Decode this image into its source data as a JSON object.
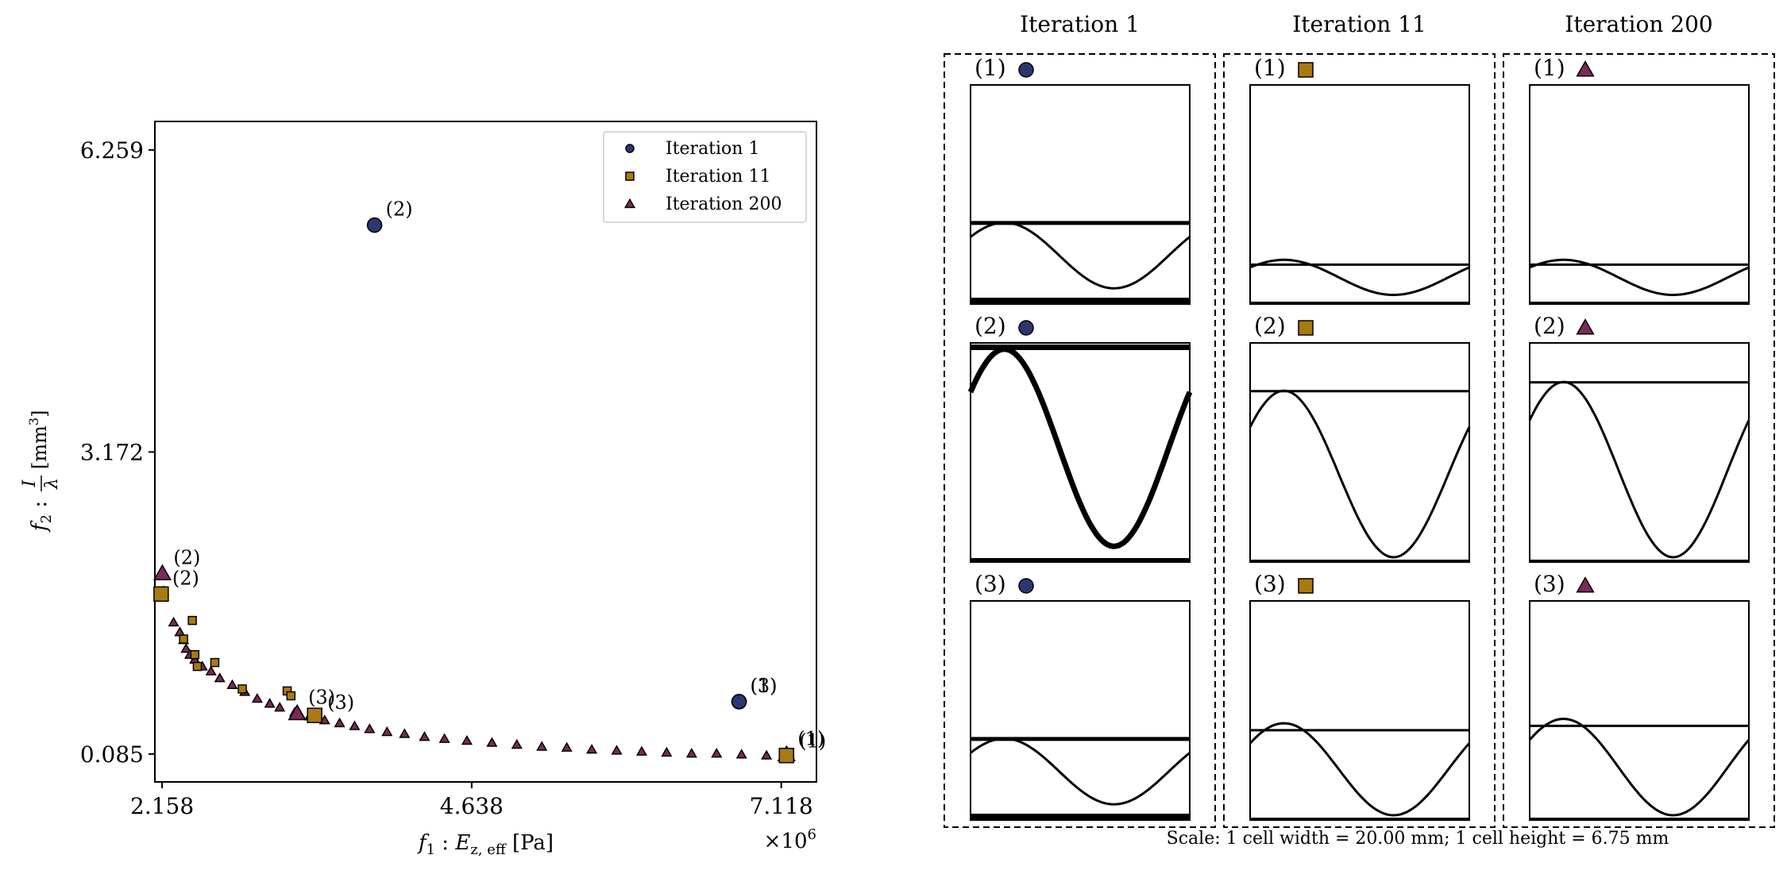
{
  "chart_data": [
    {
      "type": "scatter",
      "xlabel_var": "f",
      "xlabel_sub": "1",
      "xlabel_text": "E",
      "xlabel_text_sub": "z, eff",
      "xlabel_unit": "[Pa]",
      "ylabel_var": "f",
      "ylabel_sub": "2",
      "ylabel_num": "I",
      "ylabel_den": "λ",
      "ylabel_unit": "[mm",
      "ylabel_unit_sup": "3",
      "ylabel_unit_end": "]",
      "x_ticks": [
        2.158,
        4.638,
        7.118
      ],
      "x_tick_labels": [
        "2.158",
        "4.638",
        "7.118"
      ],
      "y_ticks": [
        0.085,
        3.172,
        6.259
      ],
      "y_tick_labels": [
        "0.085",
        "3.172",
        "6.259"
      ],
      "x_multiplier_base": "×10",
      "x_multiplier_exp": "6",
      "xlim": [
        2.1,
        7.4
      ],
      "ylim": [
        -0.2,
        6.55
      ],
      "legend_position": "top-right",
      "series": [
        {
          "name": "Iteration 1",
          "marker": "circle",
          "color": "#2a3770",
          "points": [
            [
              3.86,
              5.49
            ],
            [
              6.78,
              0.62
            ]
          ],
          "labeled": [
            {
              "x": 3.86,
              "y": 5.49,
              "label": "(2)"
            },
            {
              "x": 6.78,
              "y": 0.62,
              "label": "(1)"
            },
            {
              "x": 6.78,
              "y": 0.62,
              "label": "(3)"
            }
          ]
        },
        {
          "name": "Iteration 11",
          "marker": "square",
          "color": "#a87a10",
          "points": [
            [
              2.4,
              1.45
            ],
            [
              2.33,
              1.26
            ],
            [
              2.42,
              1.1
            ],
            [
              2.58,
              1.02
            ],
            [
              2.44,
              0.98
            ],
            [
              2.8,
              0.75
            ],
            [
              3.16,
              0.73
            ],
            [
              3.19,
              0.68
            ],
            [
              3.38,
              0.48
            ],
            [
              7.16,
              0.07
            ],
            [
              2.15,
              1.72
            ]
          ],
          "labeled": [
            {
              "x": 2.15,
              "y": 1.72,
              "label": "(2)"
            },
            {
              "x": 3.38,
              "y": 0.48,
              "label": "(3)"
            },
            {
              "x": 7.16,
              "y": 0.07,
              "label": "(1)"
            }
          ]
        },
        {
          "name": "Iteration 200",
          "marker": "triangle",
          "color": "#7a2a5a",
          "points": [
            [
              2.16,
              1.93
            ],
            [
              2.17,
              1.75
            ],
            [
              2.25,
              1.43
            ],
            [
              2.3,
              1.33
            ],
            [
              2.33,
              1.25
            ],
            [
              2.35,
              1.16
            ],
            [
              2.38,
              1.1
            ],
            [
              2.42,
              1.05
            ],
            [
              2.48,
              0.98
            ],
            [
              2.55,
              0.93
            ],
            [
              2.62,
              0.86
            ],
            [
              2.72,
              0.79
            ],
            [
              2.82,
              0.72
            ],
            [
              2.92,
              0.65
            ],
            [
              3.02,
              0.6
            ],
            [
              3.1,
              0.56
            ],
            [
              3.22,
              0.51
            ],
            [
              3.34,
              0.47
            ],
            [
              3.46,
              0.43
            ],
            [
              3.58,
              0.4
            ],
            [
              3.7,
              0.37
            ],
            [
              3.82,
              0.34
            ],
            [
              3.96,
              0.31
            ],
            [
              4.1,
              0.29
            ],
            [
              4.26,
              0.26
            ],
            [
              4.42,
              0.24
            ],
            [
              4.6,
              0.22
            ],
            [
              4.8,
              0.2
            ],
            [
              5.0,
              0.18
            ],
            [
              5.2,
              0.16
            ],
            [
              5.4,
              0.15
            ],
            [
              5.6,
              0.13
            ],
            [
              5.8,
              0.12
            ],
            [
              6.0,
              0.11
            ],
            [
              6.2,
              0.1
            ],
            [
              6.4,
              0.09
            ],
            [
              6.6,
              0.09
            ],
            [
              6.8,
              0.08
            ],
            [
              7.0,
              0.07
            ],
            [
              3.24,
              0.5
            ],
            [
              7.16,
              0.08
            ]
          ],
          "labeled": [
            {
              "x": 2.16,
              "y": 1.93,
              "label": "(2)"
            },
            {
              "x": 3.24,
              "y": 0.5,
              "label": "(3)"
            },
            {
              "x": 7.16,
              "y": 0.08,
              "label": "(1)"
            }
          ]
        }
      ]
    },
    {
      "type": "other",
      "columns": [
        {
          "title": "Iteration 1",
          "marker": "circle",
          "color": "#2a3770"
        },
        {
          "title": "Iteration 11",
          "marker": "square",
          "color": "#a87a10"
        },
        {
          "title": "Iteration 200",
          "marker": "triangle",
          "color": "#7a2a5a"
        }
      ],
      "row_labels": [
        "(1)",
        "(2)",
        "(3)"
      ],
      "cells": [
        [
          {
            "top": 0.63,
            "top_w": 5,
            "bot_w": 8,
            "amp": 0.15,
            "mid": 0.2,
            "wave_w": 3
          },
          {
            "top": 0.02,
            "top_w": 7,
            "bot_w": 5,
            "amp": 0.45,
            "mid": 0.5,
            "wave_w": 7
          },
          {
            "top": 0.63,
            "top_w": 5,
            "bot_w": 8,
            "amp": 0.15,
            "mid": 0.2,
            "wave_w": 3
          }
        ],
        [
          {
            "top": 0.82,
            "top_w": 3,
            "bot_w": 3,
            "amp": 0.08,
            "mid": 0.1,
            "wave_w": 3
          },
          {
            "top": 0.22,
            "top_w": 3,
            "bot_w": 3,
            "amp": 0.38,
            "mid": 0.38,
            "wave_w": 3
          },
          {
            "top": 0.59,
            "top_w": 3,
            "bot_w": 3,
            "amp": 0.21,
            "mid": 0.21,
            "wave_w": 3
          }
        ],
        [
          {
            "top": 0.82,
            "top_w": 3,
            "bot_w": 3,
            "amp": 0.08,
            "mid": 0.1,
            "wave_w": 3
          },
          {
            "top": 0.18,
            "top_w": 3,
            "bot_w": 3,
            "amp": 0.4,
            "mid": 0.4,
            "wave_w": 3
          },
          {
            "top": 0.57,
            "top_w": 3,
            "bot_w": 3,
            "amp": 0.22,
            "mid": 0.22,
            "wave_w": 3
          }
        ]
      ],
      "scale_note": "Scale: 1 cell width = 20.00 mm; 1 cell height = 6.75 mm"
    }
  ]
}
